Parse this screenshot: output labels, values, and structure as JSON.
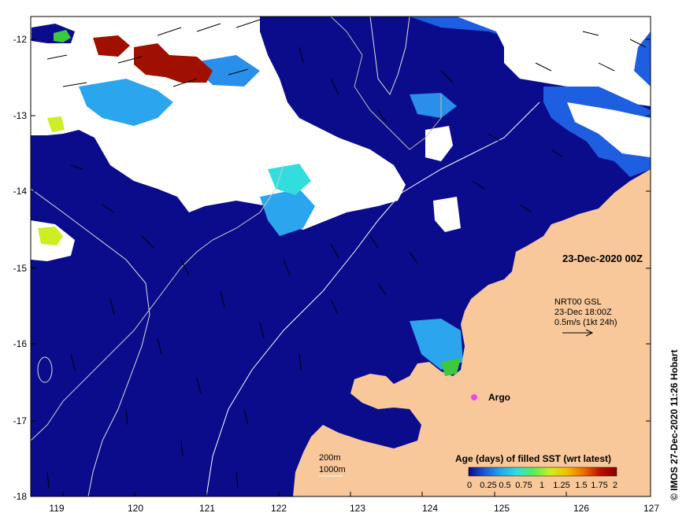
{
  "map": {
    "date_label": "23-Dec-2020 00Z",
    "wind_info": {
      "line1": "NRT00 GSL",
      "line2": "23-Dec 18:00Z",
      "line3": "0.5m/s (1kt 24h)"
    },
    "argo_label": "Argo",
    "contour_legend": {
      "line1": "200m",
      "line2": "1000m"
    },
    "credit": "© IMOS 27-Dec-2020 11:26 Hobart",
    "x_axis": {
      "ticks": [
        "119",
        "120",
        "121",
        "122",
        "123",
        "124",
        "125",
        "126",
        "127"
      ]
    },
    "y_axis": {
      "ticks": [
        "-12",
        "-13",
        "-14",
        "-15",
        "-16",
        "-17",
        "-18"
      ]
    },
    "colorbar": {
      "title": "Age (days) of filled SST (wrt latest)",
      "ticks": [
        "0",
        "0.25",
        "0.5",
        "0.75",
        "1",
        "1.25",
        "1.5",
        "1.75",
        "2"
      ],
      "tick_text": "0  0.25 0.5 0.75  1  1.25 1.5 1.75  2",
      "colors": [
        "#08088a",
        "#1a5ad8",
        "#22aaee",
        "#33dddd",
        "#55ee55",
        "#ccee22",
        "#f2c200",
        "#ee6a00",
        "#b81000",
        "#8a0000"
      ]
    },
    "colors": {
      "ocean": "#0a0c8c",
      "land": "#f8c89a",
      "cloud": "#ffffff",
      "argo": "#ee44ee"
    }
  }
}
